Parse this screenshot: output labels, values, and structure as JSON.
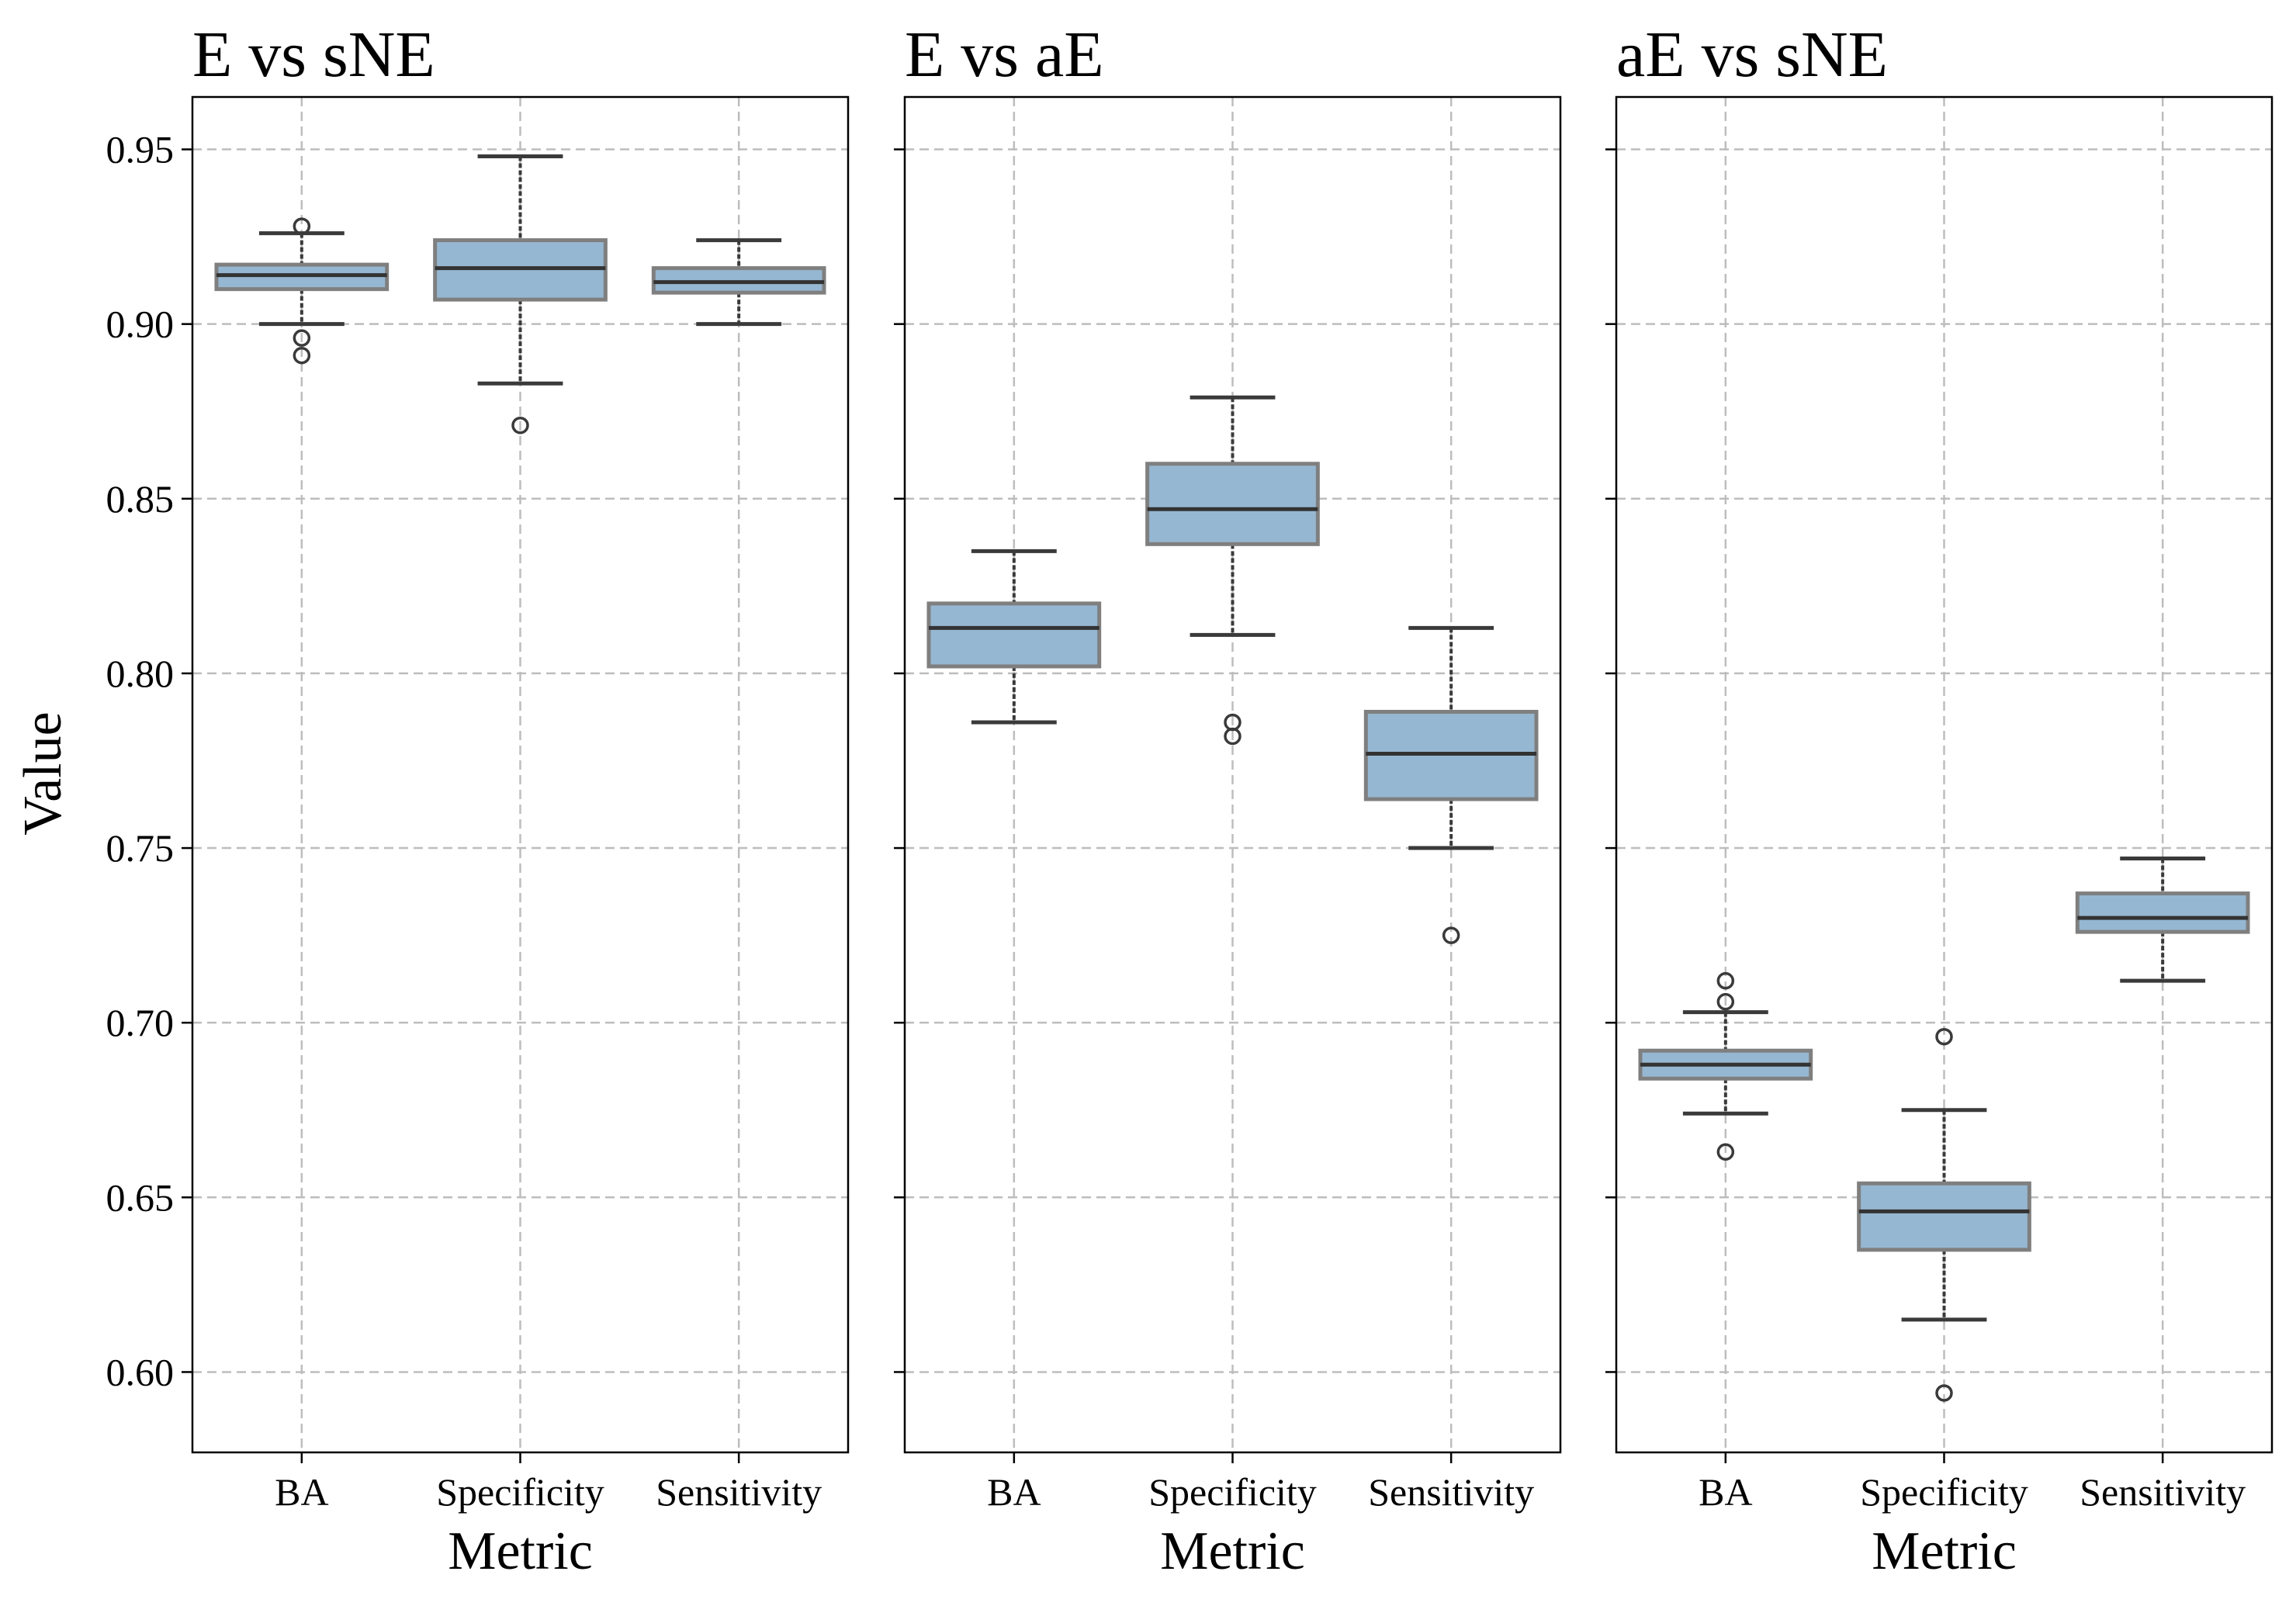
{
  "colors": {
    "box_fill": "#96b7d1",
    "box_edge": "#7f7f7f",
    "whisker": "#3a3a3a",
    "median": "#333333",
    "grid": "#bdbdbd",
    "axes": "#000000"
  },
  "chart_data": {
    "type": "box",
    "ylabel": "Value",
    "xlabel": "Metric",
    "ylim": [
      0.577,
      0.965
    ],
    "yticks": [
      "0.60",
      "0.65",
      "0.70",
      "0.75",
      "0.80",
      "0.85",
      "0.90",
      "0.95"
    ],
    "categories": [
      "BA",
      "Specificity",
      "Sensitivity"
    ],
    "grid": true,
    "grid_style": "dashed",
    "shared_y": true,
    "panels": [
      {
        "title": "E vs sNE",
        "boxes": [
          {
            "category": "BA",
            "whisker_low": 0.9,
            "q1": 0.91,
            "median": 0.914,
            "q3": 0.917,
            "whisker_high": 0.926,
            "outliers": [
              0.928,
              0.896,
              0.891
            ]
          },
          {
            "category": "Specificity",
            "whisker_low": 0.883,
            "q1": 0.907,
            "median": 0.916,
            "q3": 0.924,
            "whisker_high": 0.948,
            "outliers": [
              0.871
            ]
          },
          {
            "category": "Sensitivity",
            "whisker_low": 0.9,
            "q1": 0.909,
            "median": 0.912,
            "q3": 0.916,
            "whisker_high": 0.924,
            "outliers": []
          }
        ]
      },
      {
        "title": "E vs aE",
        "boxes": [
          {
            "category": "BA",
            "whisker_low": 0.786,
            "q1": 0.802,
            "median": 0.813,
            "q3": 0.82,
            "whisker_high": 0.835,
            "outliers": []
          },
          {
            "category": "Specificity",
            "whisker_low": 0.811,
            "q1": 0.837,
            "median": 0.847,
            "q3": 0.86,
            "whisker_high": 0.879,
            "outliers": [
              0.786,
              0.782
            ]
          },
          {
            "category": "Sensitivity",
            "whisker_low": 0.75,
            "q1": 0.764,
            "median": 0.777,
            "q3": 0.789,
            "whisker_high": 0.813,
            "outliers": [
              0.725
            ]
          }
        ]
      },
      {
        "title": "aE vs sNE",
        "boxes": [
          {
            "category": "BA",
            "whisker_low": 0.674,
            "q1": 0.684,
            "median": 0.688,
            "q3": 0.692,
            "whisker_high": 0.703,
            "outliers": [
              0.712,
              0.706,
              0.663
            ]
          },
          {
            "category": "Specificity",
            "whisker_low": 0.615,
            "q1": 0.635,
            "median": 0.646,
            "q3": 0.654,
            "whisker_high": 0.675,
            "outliers": [
              0.696,
              0.594
            ]
          },
          {
            "category": "Sensitivity",
            "whisker_low": 0.712,
            "q1": 0.726,
            "median": 0.73,
            "q3": 0.737,
            "whisker_high": 0.747,
            "outliers": []
          }
        ]
      }
    ]
  }
}
